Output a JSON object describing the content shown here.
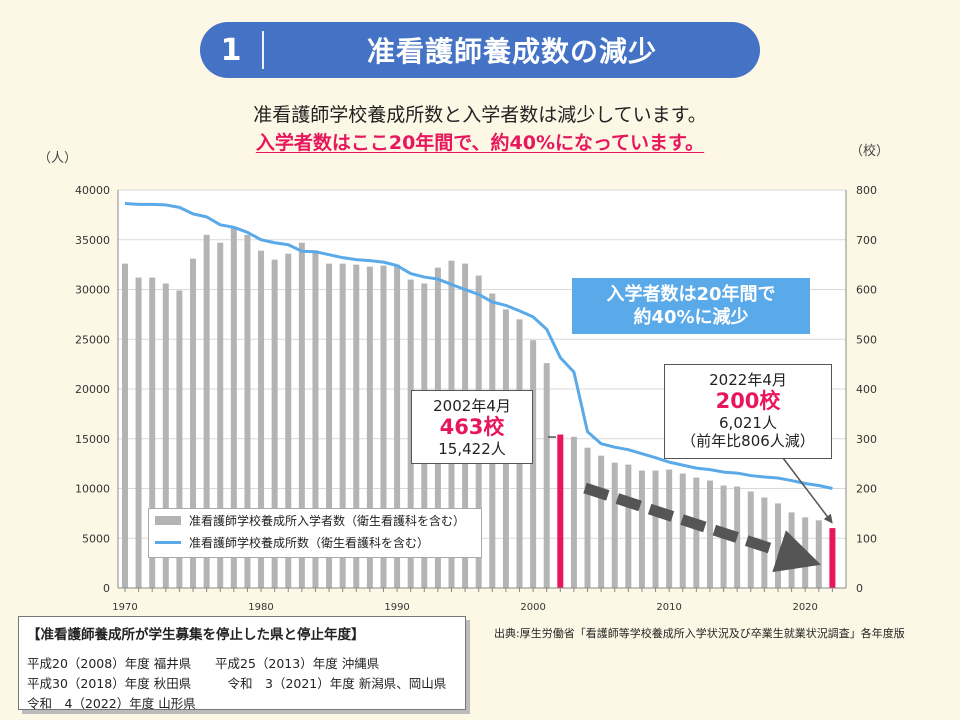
{
  "header": {
    "number": "1",
    "title": "准看護師養成数の減少"
  },
  "lead": {
    "line1": "准看護師学校養成所数と入学者数は減少しています。",
    "line2": "入学者数はここ20年間で、約40%になっています。"
  },
  "units": {
    "left": "（人）",
    "right": "（校）"
  },
  "chart_data": {
    "type": "bar+line",
    "x_ticks": [
      "1970",
      "1980",
      "1990",
      "2000",
      "2010",
      "2020"
    ],
    "y_left_ticks": [
      "40000",
      "35000",
      "30000",
      "25000",
      "20000",
      "15000",
      "10000",
      "5000",
      "0"
    ],
    "y_right_ticks": [
      "800",
      "700",
      "600",
      "500",
      "400",
      "300",
      "200",
      "100",
      "0"
    ],
    "ylim_left": [
      0,
      40000
    ],
    "ylim_right": [
      0,
      800
    ],
    "years": [
      1970,
      1971,
      1972,
      1973,
      1974,
      1975,
      1976,
      1977,
      1978,
      1979,
      1980,
      1981,
      1982,
      1983,
      1984,
      1985,
      1986,
      1987,
      1988,
      1989,
      1990,
      1991,
      1992,
      1993,
      1994,
      1995,
      1996,
      1997,
      1998,
      1999,
      2000,
      2001,
      2002,
      2003,
      2004,
      2005,
      2006,
      2007,
      2008,
      2009,
      2010,
      2011,
      2012,
      2013,
      2014,
      2015,
      2016,
      2017,
      2018,
      2019,
      2020,
      2021,
      2022
    ],
    "series": [
      {
        "name": "准看護師学校養成所入学者数（衛生看護科を含む）",
        "axis": "left",
        "kind": "bar",
        "color": "#b4b4b4",
        "values": [
          32600,
          31200,
          31200,
          30600,
          29900,
          33100,
          35500,
          34700,
          36200,
          35500,
          33900,
          33000,
          33600,
          34700,
          33900,
          32600,
          32600,
          32500,
          32300,
          32400,
          32500,
          31000,
          30600,
          32200,
          32900,
          32600,
          31400,
          29600,
          28000,
          27000,
          24900,
          22600,
          15422,
          15200,
          14100,
          13300,
          12600,
          12400,
          11800,
          11800,
          11900,
          11500,
          11100,
          10800,
          10300,
          10200,
          9700,
          9100,
          8500,
          7600,
          7100,
          6800,
          6021
        ],
        "highlight": [
          {
            "year": 2002,
            "color": "#e8175d"
          },
          {
            "year": 2022,
            "color": "#e8175d"
          }
        ]
      },
      {
        "name": "准看護師学校養成所数（衛生看護科を含む）",
        "axis": "right",
        "kind": "line",
        "color": "#5aa9e8",
        "values": [
          773,
          771,
          771,
          770,
          765,
          752,
          746,
          730,
          725,
          715,
          700,
          694,
          690,
          677,
          676,
          670,
          664,
          660,
          658,
          655,
          648,
          632,
          625,
          621,
          610,
          600,
          590,
          575,
          568,
          557,
          545,
          520,
          463,
          434,
          314,
          290,
          283,
          278,
          270,
          262,
          253,
          247,
          241,
          238,
          233,
          231,
          226,
          223,
          221,
          216,
          210,
          206,
          200
        ]
      }
    ]
  },
  "callouts": {
    "c2002": {
      "date": "2002年4月",
      "schools": "463校",
      "students": "15,422人"
    },
    "c2022": {
      "date": "2022年4月",
      "schools": "200校",
      "students": "6,021人",
      "note": "（前年比806人減）"
    }
  },
  "highlight_box": {
    "line1": "入学者数は20年間で",
    "line2": "約40%に減少"
  },
  "legend": {
    "bar_label": "准看護師学校養成所入学者数（衛生看護科を含む）",
    "line_label": "准看護師学校養成所数（衛生看護科を含む）"
  },
  "source": "出典:厚生労働省「看護師等学校養成所入学状況及び卒業生就業状況調査」各年度版",
  "stop_box": {
    "title": "【准看護師養成所が学生募集を停止した県と停止年度】",
    "rows": [
      [
        "平成20（2008）年度 福井県",
        "平成25（2013）年度 沖縄県"
      ],
      [
        "平成30（2018）年度 秋田県",
        "　令和　3（2021）年度 新潟県、岡山県"
      ],
      [
        "令和　4（2022）年度 山形県",
        ""
      ]
    ]
  }
}
